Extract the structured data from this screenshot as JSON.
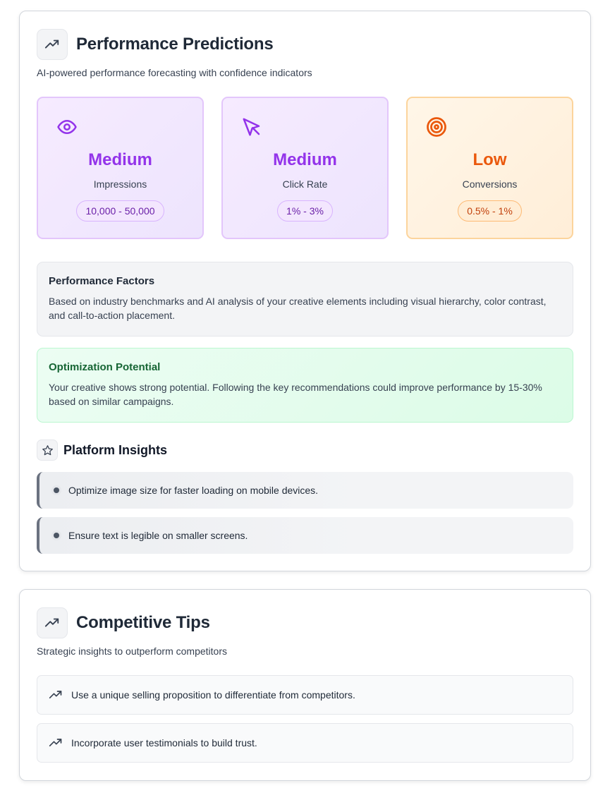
{
  "performance": {
    "title": "Performance Predictions",
    "subtitle": "AI-powered performance forecasting with confidence indicators",
    "metrics": [
      {
        "icon": "eye-icon",
        "level": "Medium",
        "label": "Impressions",
        "range": "10,000 - 50,000",
        "color": "#9333ea"
      },
      {
        "icon": "cursor-pointer-icon",
        "level": "Medium",
        "label": "Click Rate",
        "range": "1% - 3%",
        "color": "#9333ea"
      },
      {
        "icon": "target-icon",
        "level": "Low",
        "label": "Conversions",
        "range": "0.5% - 1%",
        "color": "#ea580c"
      }
    ],
    "factors": {
      "title": "Performance Factors",
      "text": "Based on industry benchmarks and AI analysis of your creative elements including visual hierarchy, color contrast, and call-to-action placement."
    },
    "optimization": {
      "title": "Optimization Potential",
      "text": "Your creative shows strong potential. Following the key recommendations could improve performance by 15-30% based on similar campaigns."
    },
    "platform_insights": {
      "title": "Platform Insights",
      "items": [
        "Optimize image size for faster loading on mobile devices.",
        "Ensure text is legible on smaller screens."
      ]
    }
  },
  "competitive": {
    "title": "Competitive Tips",
    "subtitle": "Strategic insights to outperform competitors",
    "tips": [
      "Use a unique selling proposition to differentiate from competitors.",
      "Incorporate user testimonials to build trust."
    ]
  }
}
